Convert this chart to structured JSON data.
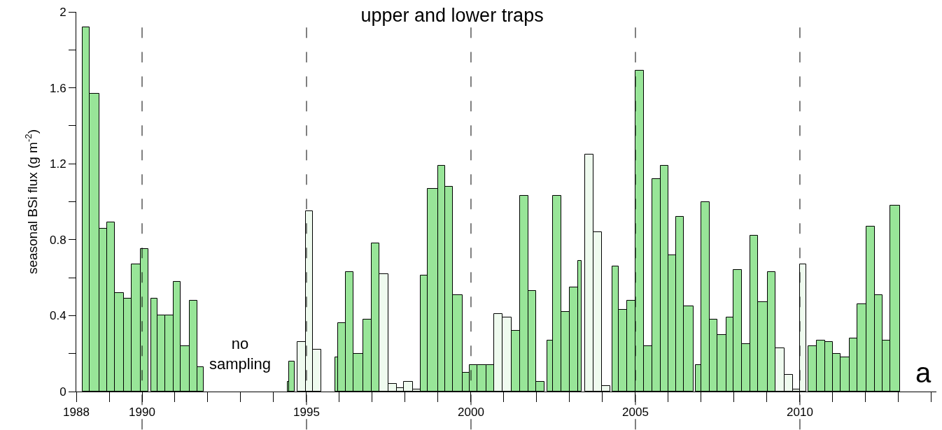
{
  "chart_data": {
    "type": "histogram",
    "title": "upper and lower traps",
    "ylabel": "seasonal BSi flux (g m$^{-2}$)",
    "annotations": [
      "no\nsampling",
      "a"
    ],
    "bins": [
      1988.19,
      1988.4,
      1988.71,
      1988.93,
      1989.17,
      1989.45,
      1989.68,
      1989.96,
      1990.2,
      1990.28,
      1990.47,
      1990.7,
      1990.95,
      1991.18,
      1991.45,
      1991.68,
      1991.87,
      1994.42,
      1994.46,
      1994.63,
      1994.72,
      1994.97,
      1995.2,
      1995.44,
      1995.87,
      1995.95,
      1996.2,
      1996.43,
      1996.73,
      1996.98,
      1997.21,
      1997.48,
      1997.75,
      1997.96,
      1998.23,
      1998.46,
      1998.69,
      1998.99,
      1999.21,
      1999.44,
      1999.74,
      1999.96,
      2000.2,
      2000.46,
      2000.71,
      2000.96,
      2001.23,
      2001.48,
      2001.75,
      2001.98,
      2002.23,
      2002.32,
      2002.48,
      2002.74,
      2003.0,
      2003.26,
      2003.36,
      2003.47,
      2003.72,
      2003.98,
      2004.24,
      2004.3,
      2004.5,
      2004.75,
      2005.01,
      2005.26,
      2005.51,
      2005.76,
      2005.99,
      2006.24,
      2006.47,
      2006.76,
      2006.83,
      2007.0,
      2007.25,
      2007.5,
      2007.76,
      2007.99,
      2008.23,
      2008.5,
      2008.73,
      2009.03,
      2009.25,
      2009.53,
      2009.78,
      2010.0,
      2010.2,
      2010.25,
      2010.51,
      2010.76,
      2011.01,
      2011.24,
      2011.51,
      2011.74,
      2012.03,
      2012.27,
      2012.51,
      2012.74,
      2013.04
    ],
    "values": [
      1.92,
      1.57,
      0.86,
      0.89,
      0.52,
      0.49,
      0.67,
      0.75,
      null,
      0.49,
      0.4,
      0.4,
      0.58,
      0.24,
      0.48,
      0.13,
      null,
      0.05,
      0.16,
      null,
      0.26,
      0.95,
      0.22,
      null,
      0.18,
      0.36,
      0.63,
      0.2,
      0.38,
      0.78,
      0.62,
      0.04,
      0.02,
      0.05,
      0.01,
      0.61,
      1.07,
      1.19,
      1.08,
      0.51,
      0.1,
      0.14,
      0.14,
      0.14,
      0.41,
      0.39,
      0.32,
      1.03,
      0.53,
      0.05,
      null,
      0.27,
      1.03,
      0.42,
      0.55,
      0.69,
      null,
      1.25,
      0.84,
      0.03,
      null,
      0.66,
      0.43,
      0.48,
      1.69,
      0.24,
      1.12,
      1.19,
      0.72,
      0.92,
      0.45,
      null,
      0.14,
      1.0,
      0.38,
      0.3,
      0.39,
      0.64,
      0.25,
      0.82,
      0.47,
      0.63,
      0.23,
      0.09,
      0.01,
      0.67,
      null,
      0.24,
      0.27,
      0.26,
      0.2,
      0.18,
      0.28,
      0.46,
      0.87,
      0.51,
      0.27,
      0.98
    ],
    "colors": [
      "#98e598",
      "#98e598",
      "#98e598",
      "#98e598",
      "#98e598",
      "#98e598",
      "#98e598",
      "#98e598",
      null,
      "#98e598",
      "#98e598",
      "#98e598",
      "#98e598",
      "#98e598",
      "#98e598",
      "#98e598",
      null,
      "#98e598",
      "#98e598",
      null,
      "#effbef",
      "#effbef",
      "#effbef",
      null,
      "#98e598",
      "#98e598",
      "#98e598",
      "#98e598",
      "#98e598",
      "#98e598",
      "#effbef",
      "#effbef",
      "#effbef",
      "#effbef",
      "#effbef",
      "#98e598",
      "#98e598",
      "#98e598",
      "#98e598",
      "#98e598",
      "#98e598",
      "#98e598",
      "#98e598",
      "#98e598",
      "#effbef",
      "#effbef",
      "#98e598",
      "#98e598",
      "#98e598",
      "#98e598",
      null,
      "#98e598",
      "#98e598",
      "#98e598",
      "#98e598",
      "#98e598",
      null,
      "#effbef",
      "#effbef",
      "#effbef",
      null,
      "#98e598",
      "#98e598",
      "#98e598",
      "#98e598",
      "#98e598",
      "#98e598",
      "#98e598",
      "#98e598",
      "#98e598",
      "#98e598",
      null,
      "#98e598",
      "#98e598",
      "#98e598",
      "#98e598",
      "#98e598",
      "#98e598",
      "#98e598",
      "#98e598",
      "#98e598",
      "#98e598",
      "#effbef",
      "#effbef",
      "#effbef",
      "#effbef",
      null,
      "#98e598",
      "#98e598",
      "#98e598",
      "#98e598",
      "#98e598",
      "#98e598",
      "#98e598",
      "#98e598",
      "#98e598",
      "#98e598",
      "#98e598"
    ],
    "xlim": [
      1988,
      2014.15
    ],
    "xticks": [
      {
        "value": 1988,
        "label": "1988"
      },
      {
        "value": 1989,
        "label": null
      },
      {
        "value": 1990,
        "label": "1990"
      },
      {
        "value": 1991,
        "label": null
      },
      {
        "value": 1992,
        "label": null
      },
      {
        "value": 1993,
        "label": null
      },
      {
        "value": 1994,
        "label": null
      },
      {
        "value": 1995,
        "label": "1995"
      },
      {
        "value": 1996,
        "label": null
      },
      {
        "value": 1997,
        "label": null
      },
      {
        "value": 1998,
        "label": null
      },
      {
        "value": 1999,
        "label": null
      },
      {
        "value": 2000,
        "label": "2000"
      },
      {
        "value": 2001,
        "label": null
      },
      {
        "value": 2002,
        "label": null
      },
      {
        "value": 2003,
        "label": null
      },
      {
        "value": 2004,
        "label": null
      },
      {
        "value": 2005,
        "label": "2005"
      },
      {
        "value": 2006,
        "label": null
      },
      {
        "value": 2007,
        "label": null
      },
      {
        "value": 2008,
        "label": null
      },
      {
        "value": 2009,
        "label": null
      },
      {
        "value": 2010,
        "label": "2010"
      },
      {
        "value": 2011,
        "label": null
      },
      {
        "value": 2012,
        "label": null
      },
      {
        "value": 2013,
        "label": null
      },
      {
        "value": 2014,
        "label": null
      }
    ],
    "ylim": [
      0,
      2
    ],
    "yticks": [
      0,
      {
        "value": 0.2,
        "label": null
      },
      0.4,
      {
        "value": 0.6,
        "label": null
      },
      0.8,
      {
        "value": 1.0,
        "label": null
      },
      1.2,
      {
        "value": 1.4,
        "label": null
      },
      1.6,
      {
        "value": 1.8,
        "label": null
      },
      2
    ],
    "ref_lines": [
      {
        "axis": "x",
        "value": 1990,
        "color": "#000000",
        "line_style": "dashed"
      },
      {
        "axis": "x",
        "value": 1995,
        "color": "#000000",
        "line_style": "dashed"
      },
      {
        "axis": "x",
        "value": 2000,
        "color": "#000000",
        "line_style": "dashed"
      },
      {
        "axis": "x",
        "value": 2005,
        "color": "#000000",
        "line_style": "dashed"
      },
      {
        "axis": "x",
        "value": 2010,
        "color": "#000000",
        "line_style": "dashed"
      }
    ]
  }
}
